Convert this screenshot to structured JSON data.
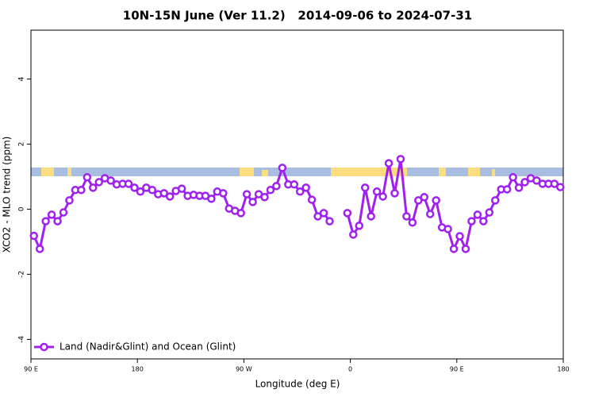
{
  "chart_data": {
    "type": "line",
    "title": "10N-15N June (Ver 11.2)   2014-09-06 to 2024-07-31",
    "x_label": "Longitude (deg E)",
    "y_label": "XCO2 - MLO trend (ppm)",
    "xlim": [
      90,
      540
    ],
    "xticks": [
      {
        "value": 90,
        "label": "90 E"
      },
      {
        "value": 180,
        "label": "180"
      },
      {
        "value": 270,
        "label": "90 W"
      },
      {
        "value": 360,
        "label": "0"
      },
      {
        "value": 450,
        "label": "90 E"
      },
      {
        "value": 540,
        "label": "180"
      }
    ],
    "ylim": [
      -4.6,
      5.5
    ],
    "yticks": [
      -4,
      -2,
      0,
      2,
      4
    ],
    "legend_position": "bottom-left",
    "x": [
      92.5,
      97.5,
      102.5,
      107.5,
      112.5,
      117.5,
      122.5,
      127.5,
      132.5,
      137.5,
      142.5,
      147.5,
      152.5,
      157.5,
      162.5,
      167.5,
      172.5,
      177.5,
      182.5,
      187.5,
      192.5,
      197.5,
      202.5,
      207.5,
      212.5,
      217.5,
      222.5,
      227.5,
      232.5,
      237.5,
      242.5,
      247.5,
      252.5,
      257.5,
      262.5,
      267.5,
      272.5,
      277.5,
      282.5,
      287.5,
      292.5,
      297.5,
      302.5,
      307.5,
      312.5,
      317.5,
      322.5,
      327.5,
      332.5,
      337.5,
      342.5,
      347.5,
      352.5,
      357.5,
      362.5,
      367.5,
      372.5,
      377.5,
      382.5,
      387.5,
      392.5,
      397.5,
      402.5,
      407.5,
      412.5,
      417.5,
      422.5,
      427.5,
      432.5,
      437.5,
      442.5,
      447.5,
      452.5,
      457.5,
      462.5,
      467.5,
      472.5,
      477.5,
      482.5,
      487.5,
      492.5,
      497.5,
      502.5,
      507.5,
      512.5,
      517.5,
      522.5,
      527.5,
      532.5,
      537.5
    ],
    "series": [
      {
        "name": "Land (Nadir&Glint) and Ocean (Glint)",
        "color": "#a020f0",
        "values": [
          -0.82,
          -1.22,
          -0.37,
          -0.17,
          -0.37,
          -0.1,
          0.27,
          0.59,
          0.59,
          0.98,
          0.66,
          0.83,
          0.95,
          0.88,
          0.76,
          0.78,
          0.78,
          0.66,
          0.54,
          0.66,
          0.59,
          0.46,
          0.49,
          0.39,
          0.56,
          0.63,
          0.41,
          0.44,
          0.41,
          0.41,
          0.32,
          0.54,
          0.49,
          0.02,
          -0.05,
          -0.12,
          0.46,
          0.22,
          0.46,
          0.37,
          0.59,
          0.71,
          1.27,
          0.76,
          0.76,
          0.54,
          0.66,
          0.29,
          -0.22,
          -0.12,
          -0.37,
          null,
          null,
          -0.12,
          -0.78,
          -0.51,
          0.66,
          -0.22,
          0.54,
          0.39,
          1.41,
          0.49,
          1.54,
          -0.22,
          -0.41,
          0.27,
          0.37,
          -0.15,
          0.27,
          -0.56,
          -0.61,
          -1.22,
          -0.83,
          -1.22,
          -0.37,
          -0.17,
          -0.37,
          -0.1,
          0.27,
          0.61,
          0.61,
          0.98,
          0.66,
          0.83,
          0.95,
          0.88,
          0.78,
          0.78,
          0.78,
          0.68
        ]
      }
    ]
  }
}
